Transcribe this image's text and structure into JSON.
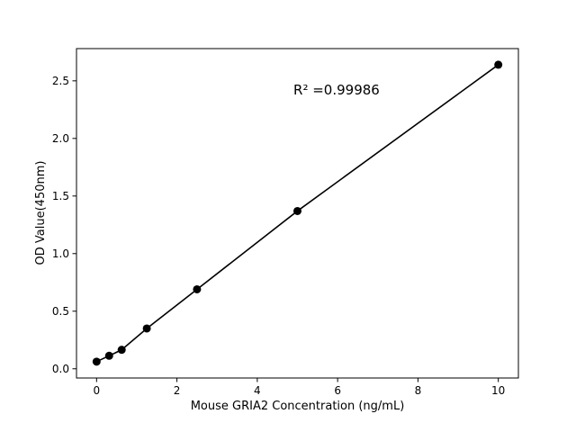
{
  "chart_data": {
    "type": "line",
    "title": "",
    "xlabel": "Mouse GRIA2 Concentration (ng/mL)",
    "ylabel": "OD Value(450nm)",
    "x": [
      0,
      0.3125,
      0.625,
      1.25,
      2.5,
      5,
      10
    ],
    "y": [
      0.062,
      0.113,
      0.165,
      0.35,
      0.69,
      1.37,
      2.64
    ],
    "annotation": {
      "text": "R² =0.99986",
      "x": 4.9,
      "y": 2.42
    },
    "xlim": [
      -0.5,
      10.5
    ],
    "ylim": [
      -0.08,
      2.78
    ],
    "xticks": [
      0,
      2,
      4,
      6,
      8,
      10
    ],
    "xtick_labels": [
      "0",
      "2",
      "4",
      "6",
      "8",
      "10"
    ],
    "yticks": [
      0.0,
      0.5,
      1.0,
      1.5,
      2.0,
      2.5
    ],
    "ytick_labels": [
      "0.0",
      "0.5",
      "1.0",
      "1.5",
      "2.0",
      "2.5"
    ],
    "grid": false,
    "legend": "none",
    "marker": "circle",
    "line_color": "#000000",
    "marker_color": "#000000",
    "axis_color": "#000000",
    "background": "#ffffff"
  }
}
